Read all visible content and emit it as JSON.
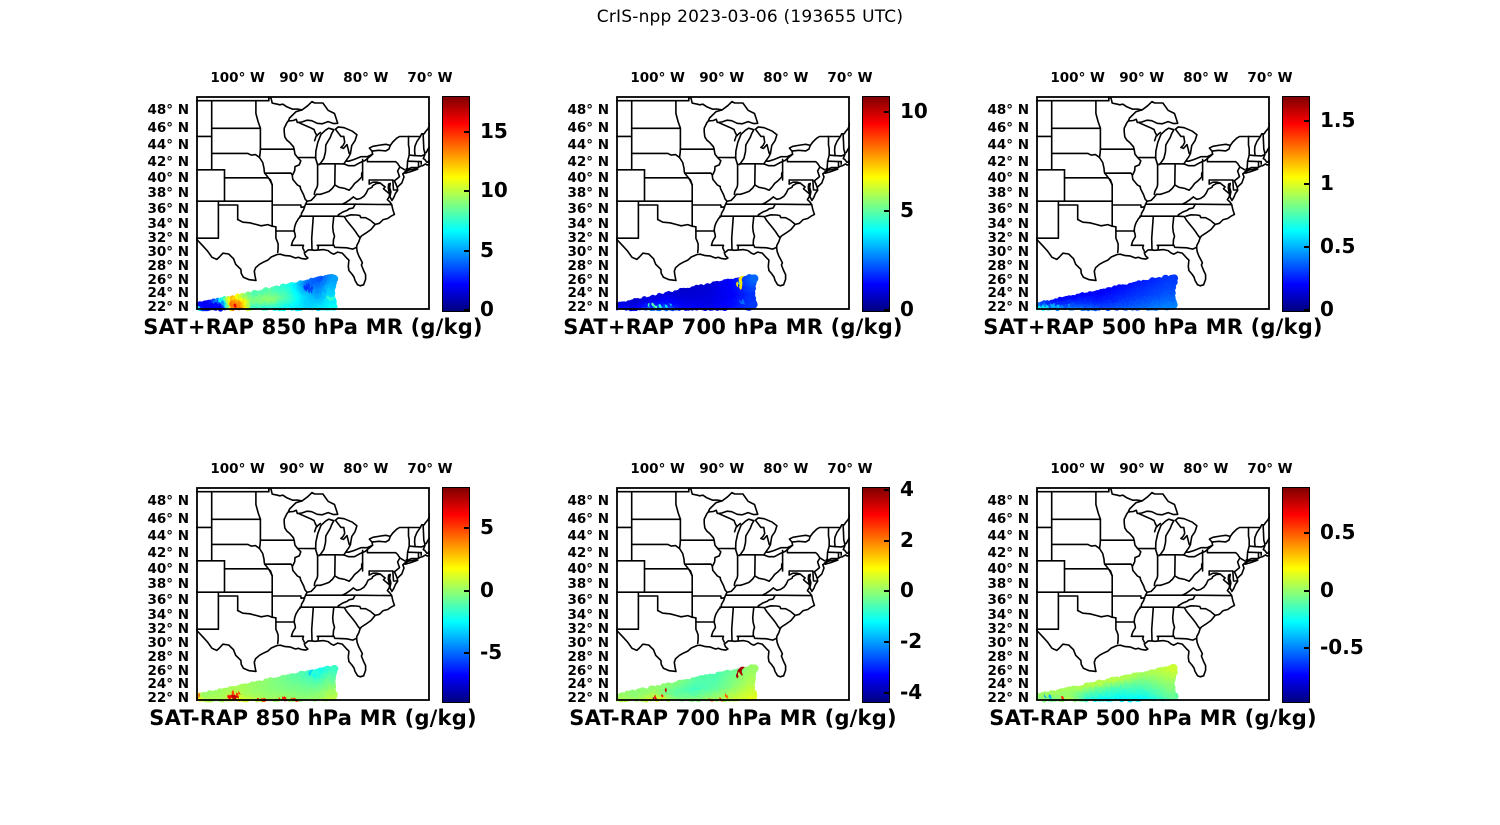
{
  "figure_title": "CrIS-npp 2023-03-06 (193655 UTC)",
  "chart_data": {
    "type": "scatter",
    "subtype": "satellite-swath-on-map",
    "basemap": "US state boundaries, lon 106.5W-70W, lat 21.5N-49.5N",
    "projection": "mercator",
    "colormap": "jet",
    "units": "g/kg",
    "lon_ticks": [
      {
        "value": -100,
        "label": "100° W"
      },
      {
        "value": -90,
        "label": "90° W"
      },
      {
        "value": -80,
        "label": "80° W"
      },
      {
        "value": -70,
        "label": "70° W"
      }
    ],
    "lat_ticks": [
      {
        "value": 48,
        "label": "48° N"
      },
      {
        "value": 46,
        "label": "46° N"
      },
      {
        "value": 44,
        "label": "44° N"
      },
      {
        "value": 42,
        "label": "42° N"
      },
      {
        "value": 40,
        "label": "40° N"
      },
      {
        "value": 38,
        "label": "38° N"
      },
      {
        "value": 36,
        "label": "36° N"
      },
      {
        "value": 34,
        "label": "34° N"
      },
      {
        "value": 32,
        "label": "32° N"
      },
      {
        "value": 30,
        "label": "30° N"
      },
      {
        "value": 28,
        "label": "28° N"
      },
      {
        "value": 26,
        "label": "26° N"
      },
      {
        "value": 24,
        "label": "24° N"
      },
      {
        "value": 22,
        "label": "22° N"
      }
    ],
    "swath": {
      "lon_start": -106.45,
      "lon_end": -84.9,
      "lat_bottom_start": 21.55,
      "lat_bottom_end": 21.9,
      "lat_top_start": 22.45,
      "lat_top_end": 26.55
    },
    "profile_format": "[t_along_swath, value_bottom, value_mid, value_top]",
    "spots_format": "[lon, lat, radius_deg, value]",
    "panels": [
      {
        "title": "SAT+RAP 850 hPa MR (g/kg)",
        "row": 0,
        "col": 0,
        "cmin": 0,
        "cmax": 18,
        "ticks": [
          {
            "value": 0,
            "label": "0"
          },
          {
            "value": 5,
            "label": "5"
          },
          {
            "value": 10,
            "label": "10"
          },
          {
            "value": 15,
            "label": "15"
          }
        ],
        "profile": [
          [
            0,
            5,
            3,
            2
          ],
          [
            0.1,
            2.5,
            2,
            2
          ],
          [
            0.2,
            2,
            2.5,
            9
          ],
          [
            0.27,
            13,
            14,
            12
          ],
          [
            0.34,
            14,
            13,
            9
          ],
          [
            0.42,
            7,
            9,
            8
          ],
          [
            0.55,
            7,
            9.5,
            8
          ],
          [
            0.7,
            6.5,
            8,
            7
          ],
          [
            0.82,
            6,
            6,
            4
          ],
          [
            0.92,
            6.5,
            5,
            3.5
          ],
          [
            1,
            7,
            6,
            5
          ]
        ],
        "spots": [
          [
            -99.95,
            22.3,
            0.3,
            16
          ],
          [
            -100.3,
            23.1,
            0.25,
            15
          ],
          [
            -105.9,
            21.9,
            0.3,
            6.5
          ],
          [
            -101.6,
            23.4,
            0.3,
            10
          ],
          [
            -88.6,
            25.0,
            0.5,
            3.2
          ],
          [
            -87.8,
            24.6,
            0.4,
            3.5
          ],
          [
            -85.2,
            23.5,
            0.45,
            7.5
          ]
        ]
      },
      {
        "title": "SAT+RAP 700 hPa MR (g/kg)",
        "row": 0,
        "col": 1,
        "cmin": 0,
        "cmax": 10.8,
        "ticks": [
          {
            "value": 0,
            "label": "0"
          },
          {
            "value": 5,
            "label": "5"
          },
          {
            "value": 10,
            "label": "10"
          }
        ],
        "profile": [
          [
            0,
            2,
            1.5,
            1
          ],
          [
            0.15,
            1.5,
            1,
            0.8
          ],
          [
            0.28,
            3,
            1.5,
            0.9
          ],
          [
            0.38,
            2.5,
            1.5,
            0.9
          ],
          [
            0.5,
            1.5,
            1,
            0.8
          ],
          [
            0.7,
            1.2,
            1,
            0.9
          ],
          [
            0.88,
            1.6,
            1.3,
            1.5
          ],
          [
            1,
            2,
            1.8,
            2.5
          ]
        ],
        "spots": [
          [
            -101.0,
            22.15,
            0.28,
            4.6
          ],
          [
            -100.15,
            22.25,
            0.25,
            5.0
          ],
          [
            -99.3,
            22.35,
            0.28,
            4.4
          ],
          [
            -98.4,
            22.5,
            0.22,
            3.8
          ],
          [
            -97.6,
            22.3,
            0.2,
            3.5
          ],
          [
            -86.55,
            25.55,
            0.55,
            7
          ],
          [
            -86.6,
            25.55,
            0.3,
            4.6
          ],
          [
            -86.0,
            23.0,
            0.3,
            2.5
          ]
        ]
      },
      {
        "title": "SAT+RAP 500 hPa MR (g/kg)",
        "row": 0,
        "col": 2,
        "cmin": 0,
        "cmax": 1.7,
        "ticks": [
          {
            "value": 0,
            "label": "0"
          },
          {
            "value": 0.5,
            "label": "0.5"
          },
          {
            "value": 1,
            "label": "1"
          },
          {
            "value": 1.5,
            "label": "1.5"
          }
        ],
        "profile": [
          [
            0,
            0.9,
            0.55,
            0.3
          ],
          [
            0.06,
            0.7,
            0.45,
            0.25
          ],
          [
            0.15,
            0.5,
            0.3,
            0.2
          ],
          [
            0.3,
            0.45,
            0.3,
            0.2
          ],
          [
            0.5,
            0.35,
            0.25,
            0.2
          ],
          [
            0.75,
            0.4,
            0.3,
            0.25
          ],
          [
            1,
            0.45,
            0.35,
            0.3
          ]
        ],
        "spots": [
          [
            -106.1,
            22.05,
            0.24,
            1.62
          ],
          [
            -105.65,
            22.1,
            0.17,
            1.28
          ],
          [
            -105.35,
            22.25,
            0.12,
            0.95
          ],
          [
            -104.95,
            22.1,
            0.2,
            0.6
          ],
          [
            -104.25,
            22.2,
            0.2,
            0.58
          ],
          [
            -103.55,
            22.25,
            0.22,
            0.5
          ],
          [
            -102.75,
            22.3,
            0.2,
            0.5
          ],
          [
            -101.9,
            22.35,
            0.22,
            0.45
          ],
          [
            -100.9,
            22.4,
            0.2,
            0.45
          ]
        ]
      },
      {
        "title": "SAT-RAP 850 hPa MR (g/kg)",
        "row": 1,
        "col": 0,
        "cmin": -8.8,
        "cmax": 8.3,
        "ticks": [
          {
            "value": -5,
            "label": "-5"
          },
          {
            "value": 0,
            "label": "0"
          },
          {
            "value": 5,
            "label": "5"
          }
        ],
        "profile": [
          [
            0,
            3,
            2,
            1
          ],
          [
            0.07,
            0.8,
            0.4,
            0
          ],
          [
            0.2,
            0.5,
            0.4,
            0.3
          ],
          [
            0.3,
            2,
            0.8,
            0.4
          ],
          [
            0.4,
            1,
            0.3,
            0.2
          ],
          [
            0.52,
            0.4,
            0,
            0
          ],
          [
            0.65,
            0.4,
            -0.2,
            -0.5
          ],
          [
            0.8,
            0,
            -0.5,
            -1.2
          ],
          [
            0.92,
            0.5,
            -0.8,
            -2.2
          ],
          [
            1,
            1,
            -0.3,
            -1.5
          ]
        ],
        "spots": [
          [
            -106.25,
            21.95,
            0.35,
            5.5
          ],
          [
            -105.75,
            22.25,
            0.3,
            4.6
          ],
          [
            -100.7,
            22.4,
            0.45,
            6.0
          ],
          [
            -100.05,
            22.15,
            0.5,
            7.2
          ],
          [
            -99.9,
            22.0,
            0.22,
            8.2
          ],
          [
            -99.35,
            22.7,
            0.35,
            5.2
          ],
          [
            -100.4,
            23.1,
            0.3,
            5.0
          ],
          [
            -96.5,
            21.9,
            0.3,
            6.3
          ],
          [
            -95.7,
            21.95,
            0.25,
            4.8
          ],
          [
            -93.1,
            21.95,
            0.3,
            5.2
          ],
          [
            -92.3,
            21.9,
            0.27,
            5.8
          ],
          [
            -90.9,
            22.0,
            0.28,
            5.2
          ],
          [
            -89.6,
            22.3,
            0.25,
            4.0
          ],
          [
            -88.3,
            26.0,
            0.45,
            -3.0
          ],
          [
            -87.6,
            25.4,
            0.4,
            -2.4
          ]
        ]
      },
      {
        "title": "SAT-RAP 700 hPa MR (g/kg)",
        "row": 1,
        "col": 1,
        "cmin": -4.3,
        "cmax": 4.1,
        "ticks": [
          {
            "value": -4,
            "label": "-4"
          },
          {
            "value": -2,
            "label": "-2"
          },
          {
            "value": 0,
            "label": "0"
          },
          {
            "value": 2,
            "label": "2"
          },
          {
            "value": 4,
            "label": "4"
          }
        ],
        "profile": [
          [
            0,
            0.6,
            0.3,
            0.1
          ],
          [
            0.15,
            0.3,
            0,
            0
          ],
          [
            0.3,
            1,
            0.2,
            0
          ],
          [
            0.45,
            0,
            -0.4,
            0
          ],
          [
            0.6,
            0,
            -0.6,
            -0.4
          ],
          [
            0.75,
            0.3,
            -0.4,
            -0.5
          ],
          [
            0.9,
            0.6,
            0,
            -0.2
          ],
          [
            1,
            0.8,
            0.3,
            0.1
          ]
        ],
        "spots": [
          [
            -100.35,
            22.1,
            0.3,
            3.8
          ],
          [
            -99.8,
            22.35,
            0.2,
            3.2
          ],
          [
            -99.05,
            22.2,
            0.25,
            2.8
          ],
          [
            -98.35,
            23.2,
            0.22,
            -3.8
          ],
          [
            -98.2,
            23.25,
            0.1,
            3.5
          ],
          [
            -97.3,
            23.3,
            0.18,
            -2.5
          ],
          [
            -91.5,
            21.9,
            0.2,
            2.0
          ],
          [
            -89.8,
            22.2,
            0.25,
            2.5
          ],
          [
            -88.7,
            22.4,
            0.2,
            2.2
          ],
          [
            -86.55,
            25.65,
            0.55,
            3.8
          ],
          [
            -86.6,
            25.6,
            0.3,
            0.2
          ]
        ]
      },
      {
        "title": "SAT-RAP 500 hPa MR (g/kg)",
        "row": 1,
        "col": 2,
        "cmin": -0.96,
        "cmax": 0.9,
        "ticks": [
          {
            "value": -0.5,
            "label": "-0.5"
          },
          {
            "value": 0,
            "label": "0"
          },
          {
            "value": 0.5,
            "label": "0.5"
          }
        ],
        "profile": [
          [
            0,
            0.05,
            0,
            0
          ],
          [
            0.12,
            -0.1,
            0,
            0.05
          ],
          [
            0.25,
            0.1,
            0,
            0.05
          ],
          [
            0.4,
            -0.25,
            -0.1,
            0.1
          ],
          [
            0.6,
            -0.3,
            -0.15,
            0.1
          ],
          [
            0.8,
            -0.28,
            -0.12,
            0.05
          ],
          [
            1,
            -0.1,
            0,
            0.12
          ]
        ],
        "spots": [
          [
            -106.3,
            22.0,
            0.28,
            -0.85
          ],
          [
            -105.8,
            22.05,
            0.22,
            0.8
          ],
          [
            -104.85,
            22.2,
            0.24,
            -0.45
          ],
          [
            -104.05,
            22.2,
            0.2,
            -0.4
          ],
          [
            -103.3,
            21.95,
            0.15,
            0.65
          ],
          [
            -101.95,
            22.1,
            0.22,
            0.6
          ],
          [
            -101.15,
            22.15,
            0.2,
            0.55
          ],
          [
            -100.35,
            22.2,
            0.18,
            0.5
          ]
        ]
      }
    ]
  }
}
